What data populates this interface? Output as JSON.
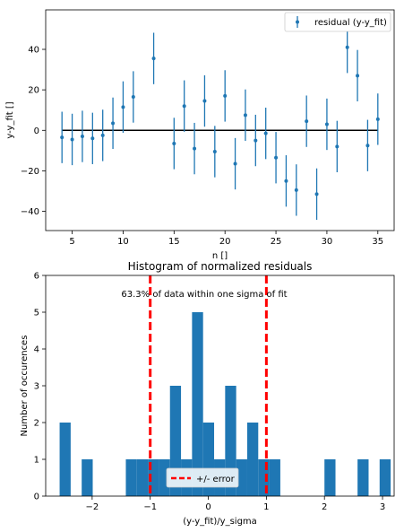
{
  "chart_data": [
    {
      "type": "scatter",
      "error_bars": true,
      "xlabel": "n []",
      "ylabel": "y-y_fit []",
      "xlim": [
        2.4,
        36.6
      ],
      "ylim": [
        -49.5,
        59.5
      ],
      "x_ticks": [
        5,
        10,
        15,
        20,
        25,
        30,
        35
      ],
      "y_ticks": [
        -40,
        -20,
        0,
        20,
        40
      ],
      "legend": {
        "position": "upper-right",
        "label": "residual (y-y_fit)"
      },
      "reference_line": {
        "y": 0,
        "x_from": 4,
        "x_to": 35,
        "color": "#000000"
      },
      "series": [
        {
          "name": "residual (y-y_fit)",
          "color": "#1f77b4",
          "points": [
            {
              "x": 4,
              "y": -3.5,
              "err": 12.7
            },
            {
              "x": 5,
              "y": -4.5,
              "err": 12.7
            },
            {
              "x": 6,
              "y": -3,
              "err": 12.7
            },
            {
              "x": 7,
              "y": -4,
              "err": 12.7
            },
            {
              "x": 8,
              "y": -2.5,
              "err": 12.7
            },
            {
              "x": 9,
              "y": 3.5,
              "err": 12.7
            },
            {
              "x": 10,
              "y": 11.5,
              "err": 12.7
            },
            {
              "x": 11,
              "y": 16.5,
              "err": 12.7
            },
            {
              "x": 13,
              "y": 35.5,
              "err": 12.7
            },
            {
              "x": 15,
              "y": -6.5,
              "err": 12.7
            },
            {
              "x": 16,
              "y": 12,
              "err": 12.7
            },
            {
              "x": 17,
              "y": -9,
              "err": 12.7
            },
            {
              "x": 18,
              "y": 14.5,
              "err": 12.7
            },
            {
              "x": 19,
              "y": -10.5,
              "err": 12.7
            },
            {
              "x": 20,
              "y": 17,
              "err": 12.7
            },
            {
              "x": 21,
              "y": -16.5,
              "err": 12.7
            },
            {
              "x": 22,
              "y": 7.5,
              "err": 12.7
            },
            {
              "x": 23,
              "y": -5,
              "err": 12.7
            },
            {
              "x": 24,
              "y": -1.5,
              "err": 12.7
            },
            {
              "x": 25,
              "y": -13.5,
              "err": 12.7
            },
            {
              "x": 26,
              "y": -25,
              "err": 12.7
            },
            {
              "x": 27,
              "y": -29.5,
              "err": 12.7
            },
            {
              "x": 28,
              "y": 4.5,
              "err": 12.7
            },
            {
              "x": 29,
              "y": -31.5,
              "err": 12.7
            },
            {
              "x": 30,
              "y": 3,
              "err": 12.7
            },
            {
              "x": 31,
              "y": -8,
              "err": 12.7
            },
            {
              "x": 32,
              "y": 41,
              "err": 12.7
            },
            {
              "x": 33,
              "y": 27,
              "err": 12.7
            },
            {
              "x": 34,
              "y": -7.5,
              "err": 12.7
            },
            {
              "x": 35,
              "y": 5.5,
              "err": 12.7
            }
          ]
        }
      ]
    },
    {
      "type": "bar",
      "subtype": "histogram",
      "title": "Histogram  of normalized residuals",
      "xlabel": "(y-y_fit)/y_sigma",
      "ylabel": "Number of occurences",
      "xlim": [
        -2.8,
        3.2
      ],
      "ylim": [
        0,
        6
      ],
      "x_ticks": [
        -2,
        -1,
        0,
        1,
        2,
        3
      ],
      "y_ticks": [
        0,
        1,
        2,
        3,
        4,
        5,
        6
      ],
      "annotation": "63.3% of data within one sigma of fit",
      "color": "#1f77b4",
      "bin_edges": [
        -2.56,
        -2.37,
        -2.18,
        -1.99,
        -1.8,
        -1.61,
        -1.42,
        -1.23,
        -1.04,
        -0.85,
        -0.66,
        -0.47,
        -0.28,
        -0.09,
        0.1,
        0.29,
        0.48,
        0.67,
        0.86,
        1.05,
        1.24,
        1.43,
        1.62,
        1.81,
        2.0,
        2.19,
        2.38,
        2.57,
        2.76,
        2.95,
        3.14
      ],
      "counts": [
        2,
        0,
        1,
        0,
        0,
        0,
        1,
        1,
        1,
        1,
        3,
        1,
        5,
        2,
        1,
        3,
        1,
        2,
        1,
        1,
        0,
        0,
        0,
        0,
        1,
        0,
        0,
        1,
        0,
        1
      ],
      "vlines": [
        {
          "x": -1,
          "label": "+/- error",
          "color": "#ff0000",
          "style": "dashed"
        },
        {
          "x": 1,
          "label": "+/- error",
          "color": "#ff0000",
          "style": "dashed"
        }
      ],
      "legend": {
        "position": "lower-center",
        "label": "+/- error"
      }
    }
  ]
}
